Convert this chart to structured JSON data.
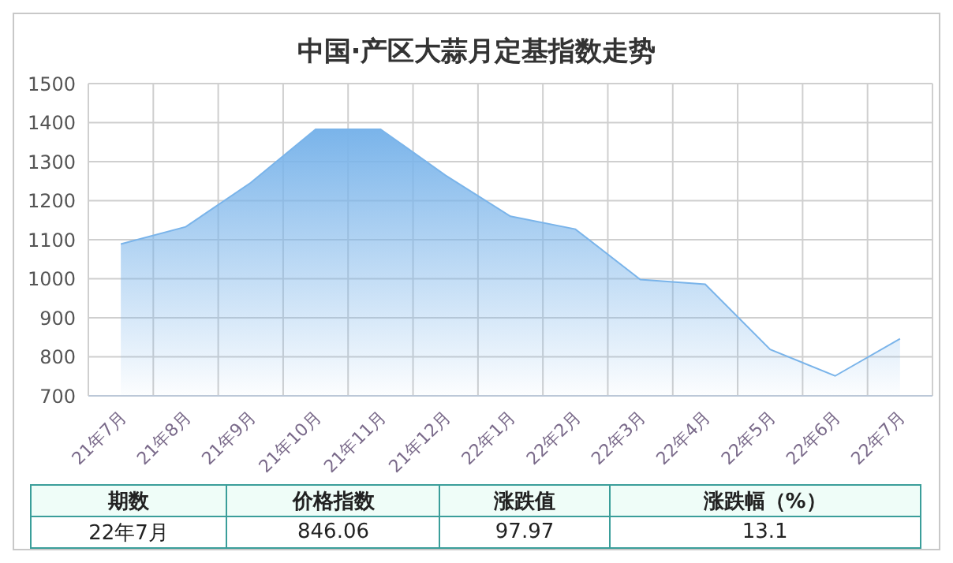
{
  "chart_data": {
    "type": "area",
    "title": "中国·产区大蒜月定基指数走势",
    "categories": [
      "21年7月",
      "21年8月",
      "21年9月",
      "21年10月",
      "21年11月",
      "21年12月",
      "22年1月",
      "22年2月",
      "22年3月",
      "22年4月",
      "22年5月",
      "22年6月",
      "22年7月"
    ],
    "series": [
      {
        "color": "#7ab4ea",
        "values": [
          1089,
          1133,
          1246,
          1383,
          1383,
          1265,
          1160,
          1127,
          998,
          986,
          819,
          751,
          846.06
        ]
      }
    ],
    "ylim": [
      700,
      1500
    ],
    "yticks": [
      700,
      800,
      900,
      1000,
      1100,
      1200,
      1300,
      1400,
      1500
    ],
    "grid": true,
    "legend": false,
    "annotations": [
      "期数",
      "价格指数",
      "涨跌值",
      "涨跌幅（%）",
      "22年7月",
      "846.06",
      "97.97",
      "13.1"
    ]
  }
}
